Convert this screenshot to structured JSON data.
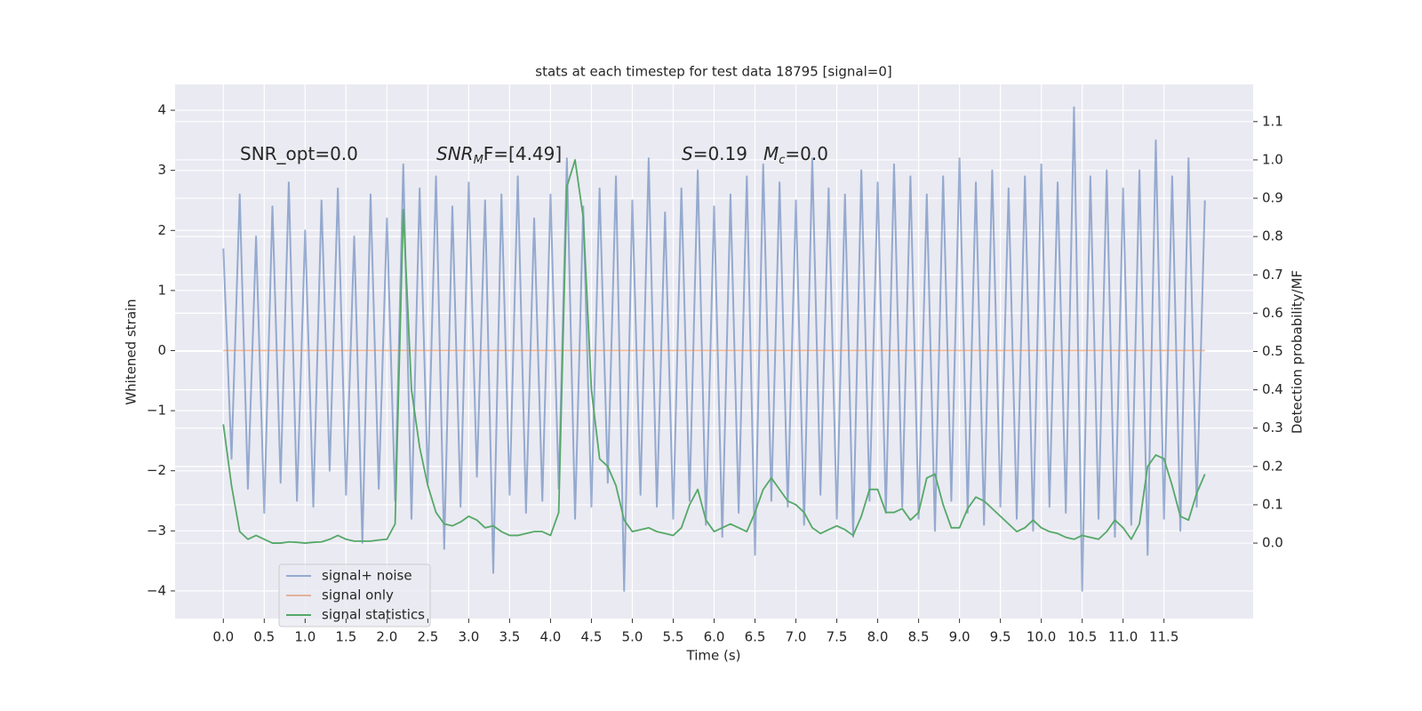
{
  "chart_data": {
    "type": "line",
    "title": "stats at each timestep for test data 18795 [signal=0]",
    "xlabel": "Time (s)",
    "ylabel": "Whitened strain",
    "y2label": "Detection probability/MF",
    "annotations": [
      [
        "SNR_opt=0.0"
      ],
      [
        "SNR",
        "M",
        "F=[4.49]"
      ],
      [
        "S",
        "=0.19"
      ],
      [
        "M",
        "c",
        "=0.0"
      ]
    ],
    "xlim": [
      -0.59,
      12.59
    ],
    "ylim": [
      -4.46,
      4.43
    ],
    "y2lim": [
      -0.197,
      1.197
    ],
    "xticks": [
      {
        "value": 0,
        "label": "0.0"
      },
      0.5,
      {
        "value": 1,
        "label": "1.0"
      },
      1.5,
      {
        "value": 2,
        "label": "2.0"
      },
      2.5,
      {
        "value": 3,
        "label": "3.0"
      },
      3.5,
      {
        "value": 4,
        "label": "4.0"
      },
      4.5,
      {
        "value": 5,
        "label": "5.0"
      },
      5.5,
      {
        "value": 6,
        "label": "6.0"
      },
      6.5,
      {
        "value": 7,
        "label": "7.0"
      },
      7.5,
      {
        "value": 8,
        "label": "8.0"
      },
      8.5,
      {
        "value": 9,
        "label": "9.0"
      },
      9.5,
      {
        "value": 10,
        "label": "10.0"
      },
      10.5,
      {
        "value": 11,
        "label": "11.0"
      },
      11.5
    ],
    "yticks": [
      {
        "value": -4,
        "label": "−4"
      },
      {
        "value": -3,
        "label": "−3"
      },
      {
        "value": -2,
        "label": "−2"
      },
      {
        "value": -1,
        "label": "−1"
      },
      0,
      1,
      2,
      3,
      4
    ],
    "y2ticks": [
      {
        "value": 0,
        "label": "0.0"
      },
      0.1,
      0.2,
      0.3,
      0.4,
      0.5,
      0.6,
      0.7,
      0.8,
      0.9,
      {
        "value": 1,
        "label": "1.0"
      },
      1.1
    ],
    "grid": true,
    "legend": "lower left",
    "series": [
      {
        "name": "signal+ noise",
        "color": "#4c72b0",
        "x": [
          0.0,
          0.1,
          0.2,
          0.3,
          0.4,
          0.5,
          0.6,
          0.7,
          0.8,
          0.9,
          1.0,
          1.1,
          1.2,
          1.3,
          1.4,
          1.5,
          1.6,
          1.7,
          1.8,
          1.9,
          2.0,
          2.1,
          2.2,
          2.3,
          2.4,
          2.5,
          2.6,
          2.7,
          2.8,
          2.9,
          3.0,
          3.1,
          3.2,
          3.3,
          3.4,
          3.5,
          3.6,
          3.7,
          3.8,
          3.9,
          4.0,
          4.1,
          4.2,
          4.3,
          4.4,
          4.5,
          4.6,
          4.7,
          4.8,
          4.9,
          5.0,
          5.1,
          5.2,
          5.3,
          5.4,
          5.5,
          5.6,
          5.7,
          5.8,
          5.9,
          6.0,
          6.1,
          6.2,
          6.3,
          6.4,
          6.5,
          6.6,
          6.7,
          6.8,
          6.9,
          7.0,
          7.1,
          7.2,
          7.3,
          7.4,
          7.5,
          7.6,
          7.7,
          7.8,
          7.9,
          8.0,
          8.1,
          8.2,
          8.3,
          8.4,
          8.5,
          8.6,
          8.7,
          8.8,
          8.9,
          9.0,
          9.1,
          9.2,
          9.3,
          9.4,
          9.5,
          9.6,
          9.7,
          9.8,
          9.9,
          10.0,
          10.1,
          10.2,
          10.3,
          10.4,
          10.5,
          10.6,
          10.7,
          10.8,
          10.9,
          11.0,
          11.1,
          11.2,
          11.3,
          11.4,
          11.5,
          11.6,
          11.7,
          11.8,
          11.9,
          12.0
        ],
        "values": [
          1.7,
          -1.8,
          2.6,
          -2.3,
          1.9,
          -2.7,
          2.4,
          -2.2,
          2.8,
          -2.5,
          2.0,
          -2.6,
          2.5,
          -2.0,
          2.7,
          -2.4,
          1.9,
          -3.2,
          2.6,
          -2.3,
          2.2,
          -2.5,
          3.1,
          -2.8,
          2.7,
          -2.2,
          2.9,
          -3.3,
          2.4,
          -2.6,
          2.8,
          -2.1,
          2.5,
          -3.7,
          2.6,
          -2.4,
          2.9,
          -2.7,
          2.2,
          -2.5,
          2.6,
          -2.3,
          3.2,
          -2.8,
          2.4,
          -2.6,
          2.7,
          -2.2,
          2.9,
          -4.0,
          2.5,
          -2.4,
          3.2,
          -2.6,
          2.3,
          -2.8,
          2.7,
          -2.5,
          3.0,
          -2.9,
          2.4,
          -3.1,
          2.6,
          -2.7,
          2.9,
          -3.4,
          3.1,
          -2.5,
          2.8,
          -2.6,
          2.5,
          -2.9,
          3.2,
          -2.4,
          2.7,
          -2.8,
          2.6,
          -3.1,
          3.0,
          -2.5,
          2.8,
          -2.7,
          3.1,
          -2.6,
          2.9,
          -2.8,
          2.6,
          -3.0,
          2.9,
          -2.5,
          3.2,
          -2.7,
          2.8,
          -2.9,
          3.0,
          -2.6,
          2.7,
          -2.8,
          2.9,
          -3.0,
          3.1,
          -2.6,
          2.8,
          -2.7,
          4.05,
          -4.0,
          2.9,
          -2.8,
          3.0,
          -3.1,
          2.7,
          -2.9,
          3.0,
          -3.4,
          3.5,
          -2.8,
          2.9,
          -3.0,
          3.2,
          -2.6,
          2.5
        ]
      },
      {
        "name": "signal only",
        "color": "#dd8452",
        "x": [
          0.0,
          12.0
        ],
        "values": [
          0,
          0
        ]
      },
      {
        "name": "signal statistics",
        "color": "#55a868",
        "axis": "y2",
        "x": [
          0.0,
          0.1,
          0.2,
          0.3,
          0.4,
          0.5,
          0.6,
          0.7,
          0.8,
          0.9,
          1.0,
          1.1,
          1.2,
          1.3,
          1.4,
          1.5,
          1.6,
          1.7,
          1.8,
          1.9,
          2.0,
          2.1,
          2.2,
          2.3,
          2.4,
          2.5,
          2.6,
          2.7,
          2.8,
          2.9,
          3.0,
          3.1,
          3.2,
          3.3,
          3.4,
          3.5,
          3.6,
          3.7,
          3.8,
          3.9,
          4.0,
          4.1,
          4.2,
          4.3,
          4.4,
          4.5,
          4.6,
          4.7,
          4.8,
          4.9,
          5.0,
          5.1,
          5.2,
          5.3,
          5.4,
          5.5,
          5.6,
          5.7,
          5.8,
          5.9,
          6.0,
          6.1,
          6.2,
          6.3,
          6.4,
          6.5,
          6.6,
          6.7,
          6.8,
          6.9,
          7.0,
          7.1,
          7.2,
          7.3,
          7.4,
          7.5,
          7.6,
          7.7,
          7.8,
          7.9,
          8.0,
          8.1,
          8.2,
          8.3,
          8.4,
          8.5,
          8.6,
          8.7,
          8.8,
          8.9,
          9.0,
          9.1,
          9.2,
          9.3,
          9.4,
          9.5,
          9.6,
          9.7,
          9.8,
          9.9,
          10.0,
          10.1,
          10.2,
          10.3,
          10.4,
          10.5,
          10.6,
          10.7,
          10.8,
          10.9,
          11.0,
          11.1,
          11.2,
          11.3,
          11.4,
          11.5,
          11.6,
          11.7,
          11.8,
          11.9,
          12.0
        ],
        "values": [
          0.31,
          0.15,
          0.03,
          0.01,
          0.02,
          0.01,
          0.0,
          0.0,
          0.003,
          0.002,
          0.0,
          0.002,
          0.003,
          0.01,
          0.02,
          0.01,
          0.005,
          0.005,
          0.005,
          0.008,
          0.01,
          0.05,
          0.87,
          0.4,
          0.25,
          0.15,
          0.08,
          0.05,
          0.045,
          0.055,
          0.07,
          0.06,
          0.04,
          0.045,
          0.03,
          0.02,
          0.02,
          0.025,
          0.03,
          0.03,
          0.02,
          0.08,
          0.93,
          1.0,
          0.85,
          0.4,
          0.22,
          0.2,
          0.15,
          0.06,
          0.03,
          0.035,
          0.04,
          0.03,
          0.025,
          0.02,
          0.04,
          0.1,
          0.14,
          0.06,
          0.03,
          0.04,
          0.05,
          0.04,
          0.03,
          0.08,
          0.14,
          0.17,
          0.14,
          0.11,
          0.1,
          0.08,
          0.04,
          0.025,
          0.035,
          0.045,
          0.035,
          0.02,
          0.07,
          0.14,
          0.14,
          0.08,
          0.08,
          0.09,
          0.06,
          0.08,
          0.17,
          0.18,
          0.1,
          0.04,
          0.04,
          0.09,
          0.12,
          0.11,
          0.09,
          0.07,
          0.05,
          0.03,
          0.04,
          0.06,
          0.04,
          0.03,
          0.025,
          0.015,
          0.01,
          0.02,
          0.015,
          0.01,
          0.03,
          0.06,
          0.04,
          0.01,
          0.05,
          0.2,
          0.23,
          0.22,
          0.15,
          0.07,
          0.06,
          0.13,
          0.18
        ]
      }
    ]
  }
}
